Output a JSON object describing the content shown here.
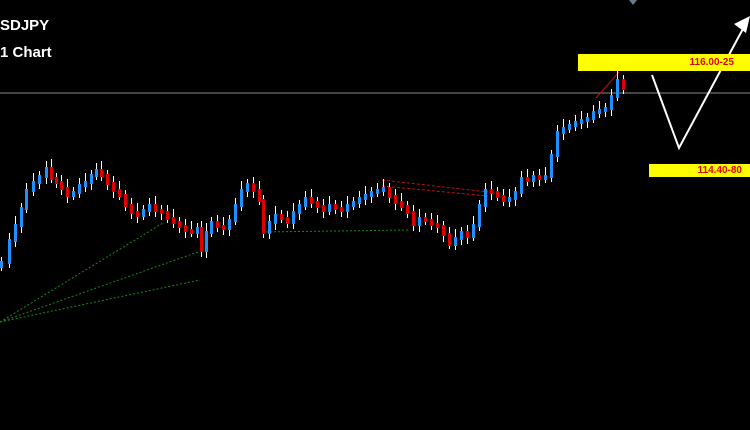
{
  "chart_data": {
    "type": "candlestick",
    "title_line1": "SDJPY",
    "title_line2": "1 Chart",
    "candles": [],
    "levels": [
      {
        "label": "116.00-25"
      },
      {
        "label": "114.40-80"
      }
    ],
    "colors": {
      "background": "#000000",
      "bull": "#1e90ff",
      "bear": "#e00000",
      "wick": "#ffffff",
      "level_fill": "#ffff00",
      "level_text": "#e00000",
      "projection": "#ffffff",
      "fan": "#1a8a1a",
      "channel": "#c01010",
      "hline": "#8a8a8a"
    }
  }
}
